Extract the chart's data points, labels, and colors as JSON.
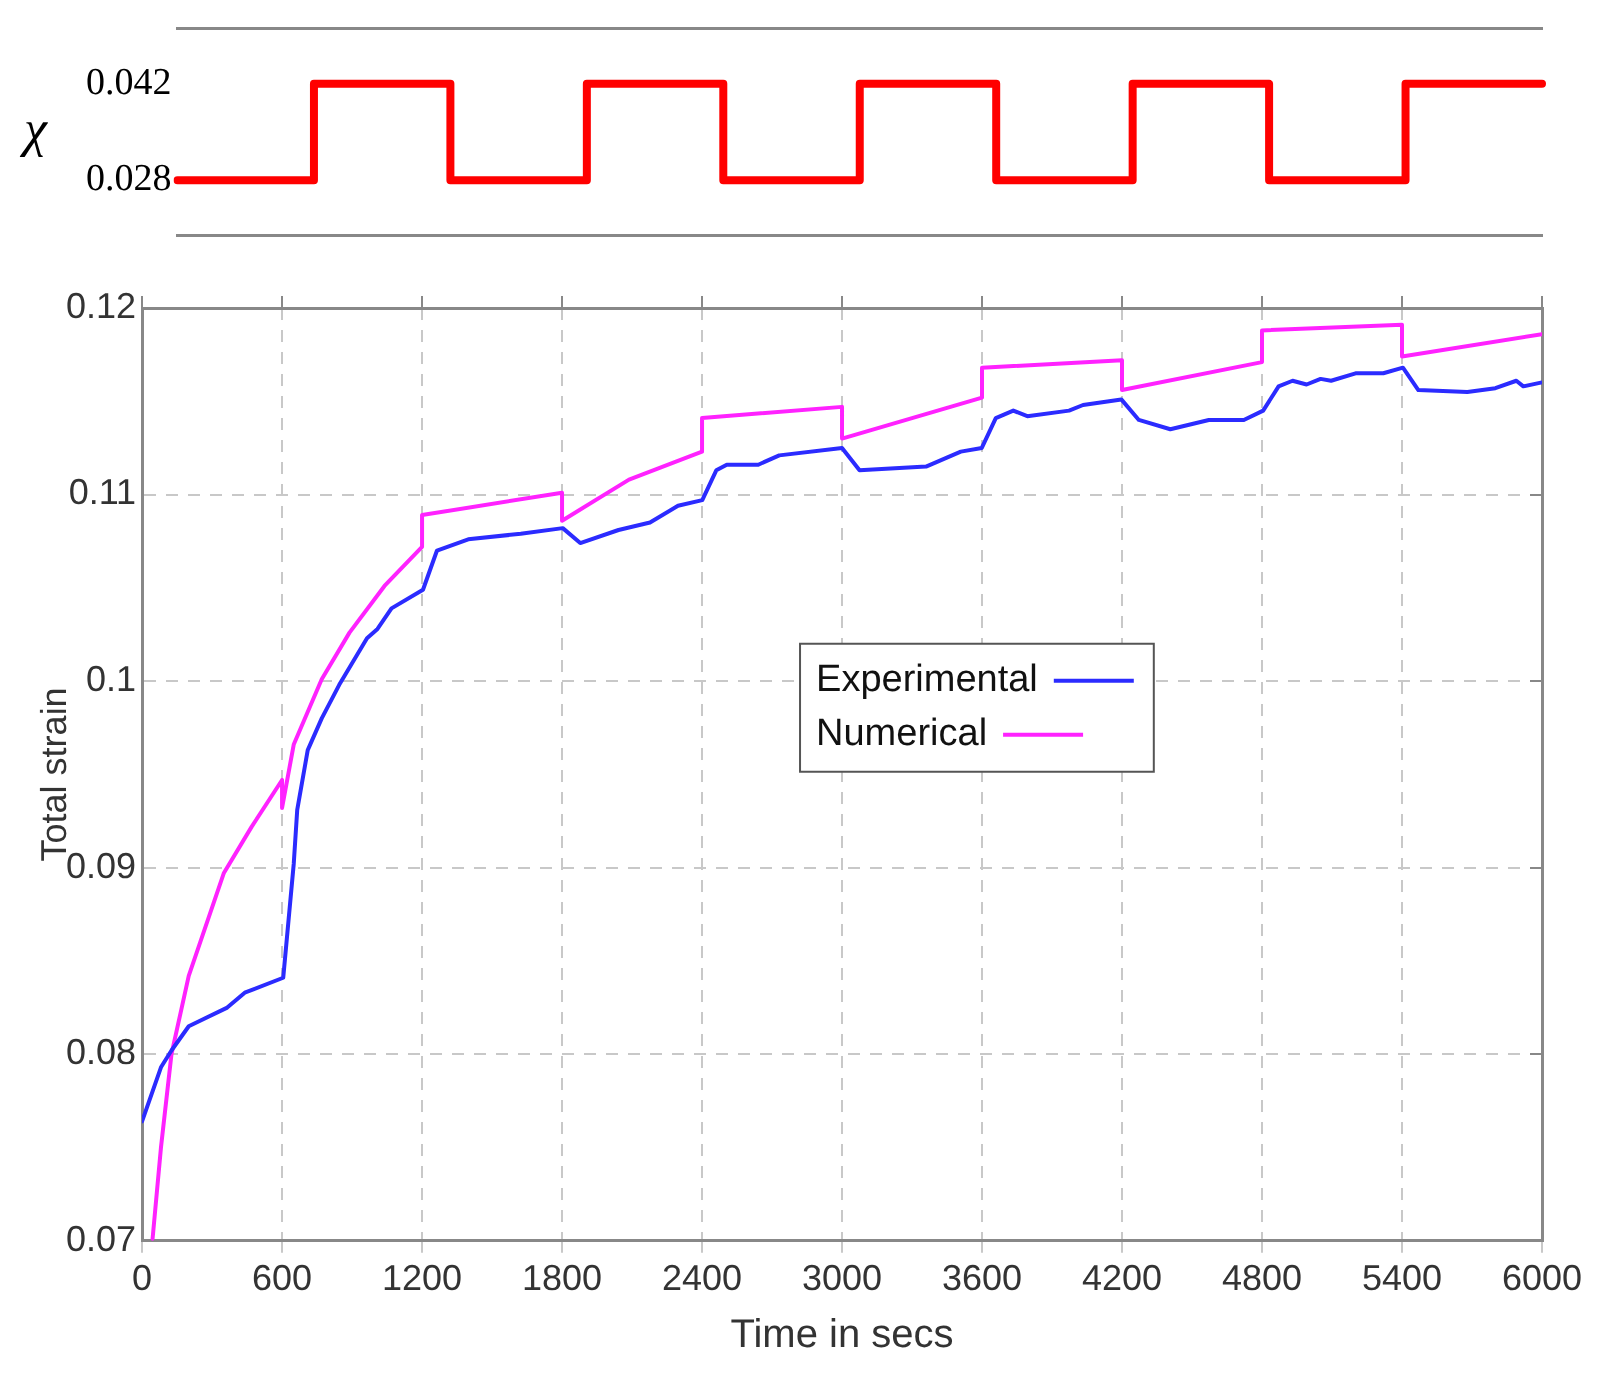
{
  "chart_data": [
    {
      "type": "step",
      "ylabel": "χ",
      "categories": [
        null,
        null,
        null,
        null,
        null,
        null,
        null,
        null,
        null,
        null,
        null
      ],
      "series": [
        {
          "color": "#ff0000",
          "values": [
            0.028,
            0.042,
            0.028,
            0.042,
            0.028,
            0.042,
            0.028,
            0.042,
            0.028,
            0.042,
            0.042
          ]
        }
      ],
      "ylim": [
        0.02,
        0.05
      ],
      "yticks": [
        0.028,
        0.042
      ],
      "tick_labels": "y",
      "grid": false,
      "legend": false,
      "marker": "none"
    },
    {
      "type": "line",
      "xlabel": "Time in secs",
      "ylabel": "Total strain",
      "series": [
        {
          "name": "Experimental",
          "color": "#2b2bff",
          "x": [
            0,
            81,
            126,
            200,
            365,
            440,
            605,
            650,
            665,
            710,
            770,
            845,
            964,
            1009,
            1069,
            1204,
            1264,
            1398,
            1623,
            1803,
            1878,
            2042,
            2177,
            2297,
            2401,
            2461,
            2506,
            2641,
            2731,
            3000,
            3075,
            3360,
            3509,
            3599,
            3659,
            3734,
            3794,
            3973,
            4033,
            4197,
            4272,
            4407,
            4572,
            4722,
            4805,
            4871,
            4931,
            4991,
            5051,
            5096,
            5201,
            5320,
            5404,
            5470,
            5680,
            5800,
            5890,
            5920,
            5995
          ],
          "values": [
            0.0764,
            0.0793,
            0.0802,
            0.0815,
            0.0825,
            0.0833,
            0.0841,
            0.0902,
            0.0931,
            0.0963,
            0.098,
            0.0998,
            0.1023,
            0.1028,
            0.1039,
            0.1049,
            0.107,
            0.1076,
            0.1079,
            0.1082,
            0.1074,
            0.1081,
            0.1085,
            0.1094,
            0.1097,
            0.1113,
            0.1116,
            0.1116,
            0.1121,
            0.1125,
            0.1113,
            0.1115,
            0.1123,
            0.1125,
            0.1141,
            0.1145,
            0.1142,
            0.1145,
            0.1148,
            0.1151,
            0.114,
            0.1135,
            0.114,
            0.114,
            0.1145,
            0.1158,
            0.1161,
            0.1159,
            0.1162,
            0.1161,
            0.1165,
            0.1165,
            0.1168,
            0.1156,
            0.1155,
            0.1157,
            0.1161,
            0.1158,
            0.116
          ]
        },
        {
          "name": "Numerical",
          "color": "#ff22ff",
          "x": [
            45,
            81,
            126,
            200,
            350,
            470,
            600,
            600,
            650,
            770,
            889,
            1039,
            1200,
            1200,
            1800,
            1800,
            2087,
            2400,
            2400,
            3000,
            3000,
            3600,
            3600,
            4200,
            4200,
            4800,
            4800,
            5400,
            5400,
            6000
          ],
          "values": [
            0.0701,
            0.075,
            0.08,
            0.0842,
            0.0897,
            0.0922,
            0.0947,
            0.0932,
            0.0966,
            0.1001,
            0.1026,
            0.1051,
            0.1072,
            0.1089,
            0.1101,
            0.1086,
            0.1108,
            0.1123,
            0.1141,
            0.1147,
            0.113,
            0.1152,
            0.1168,
            0.1172,
            0.1156,
            0.1171,
            0.1188,
            0.1191,
            0.1174,
            0.1186
          ]
        }
      ],
      "xlim": [
        0,
        6000
      ],
      "xticks": [
        0,
        600,
        1200,
        1800,
        2400,
        3000,
        3600,
        4200,
        4800,
        5400,
        6000
      ],
      "ylim": [
        0.07,
        0.12
      ],
      "yticks": [
        0.07,
        0.08,
        0.09,
        0.1,
        0.11,
        0.12
      ],
      "grid": true,
      "legend": "right",
      "marker": "none",
      "line_style": "solid"
    }
  ]
}
